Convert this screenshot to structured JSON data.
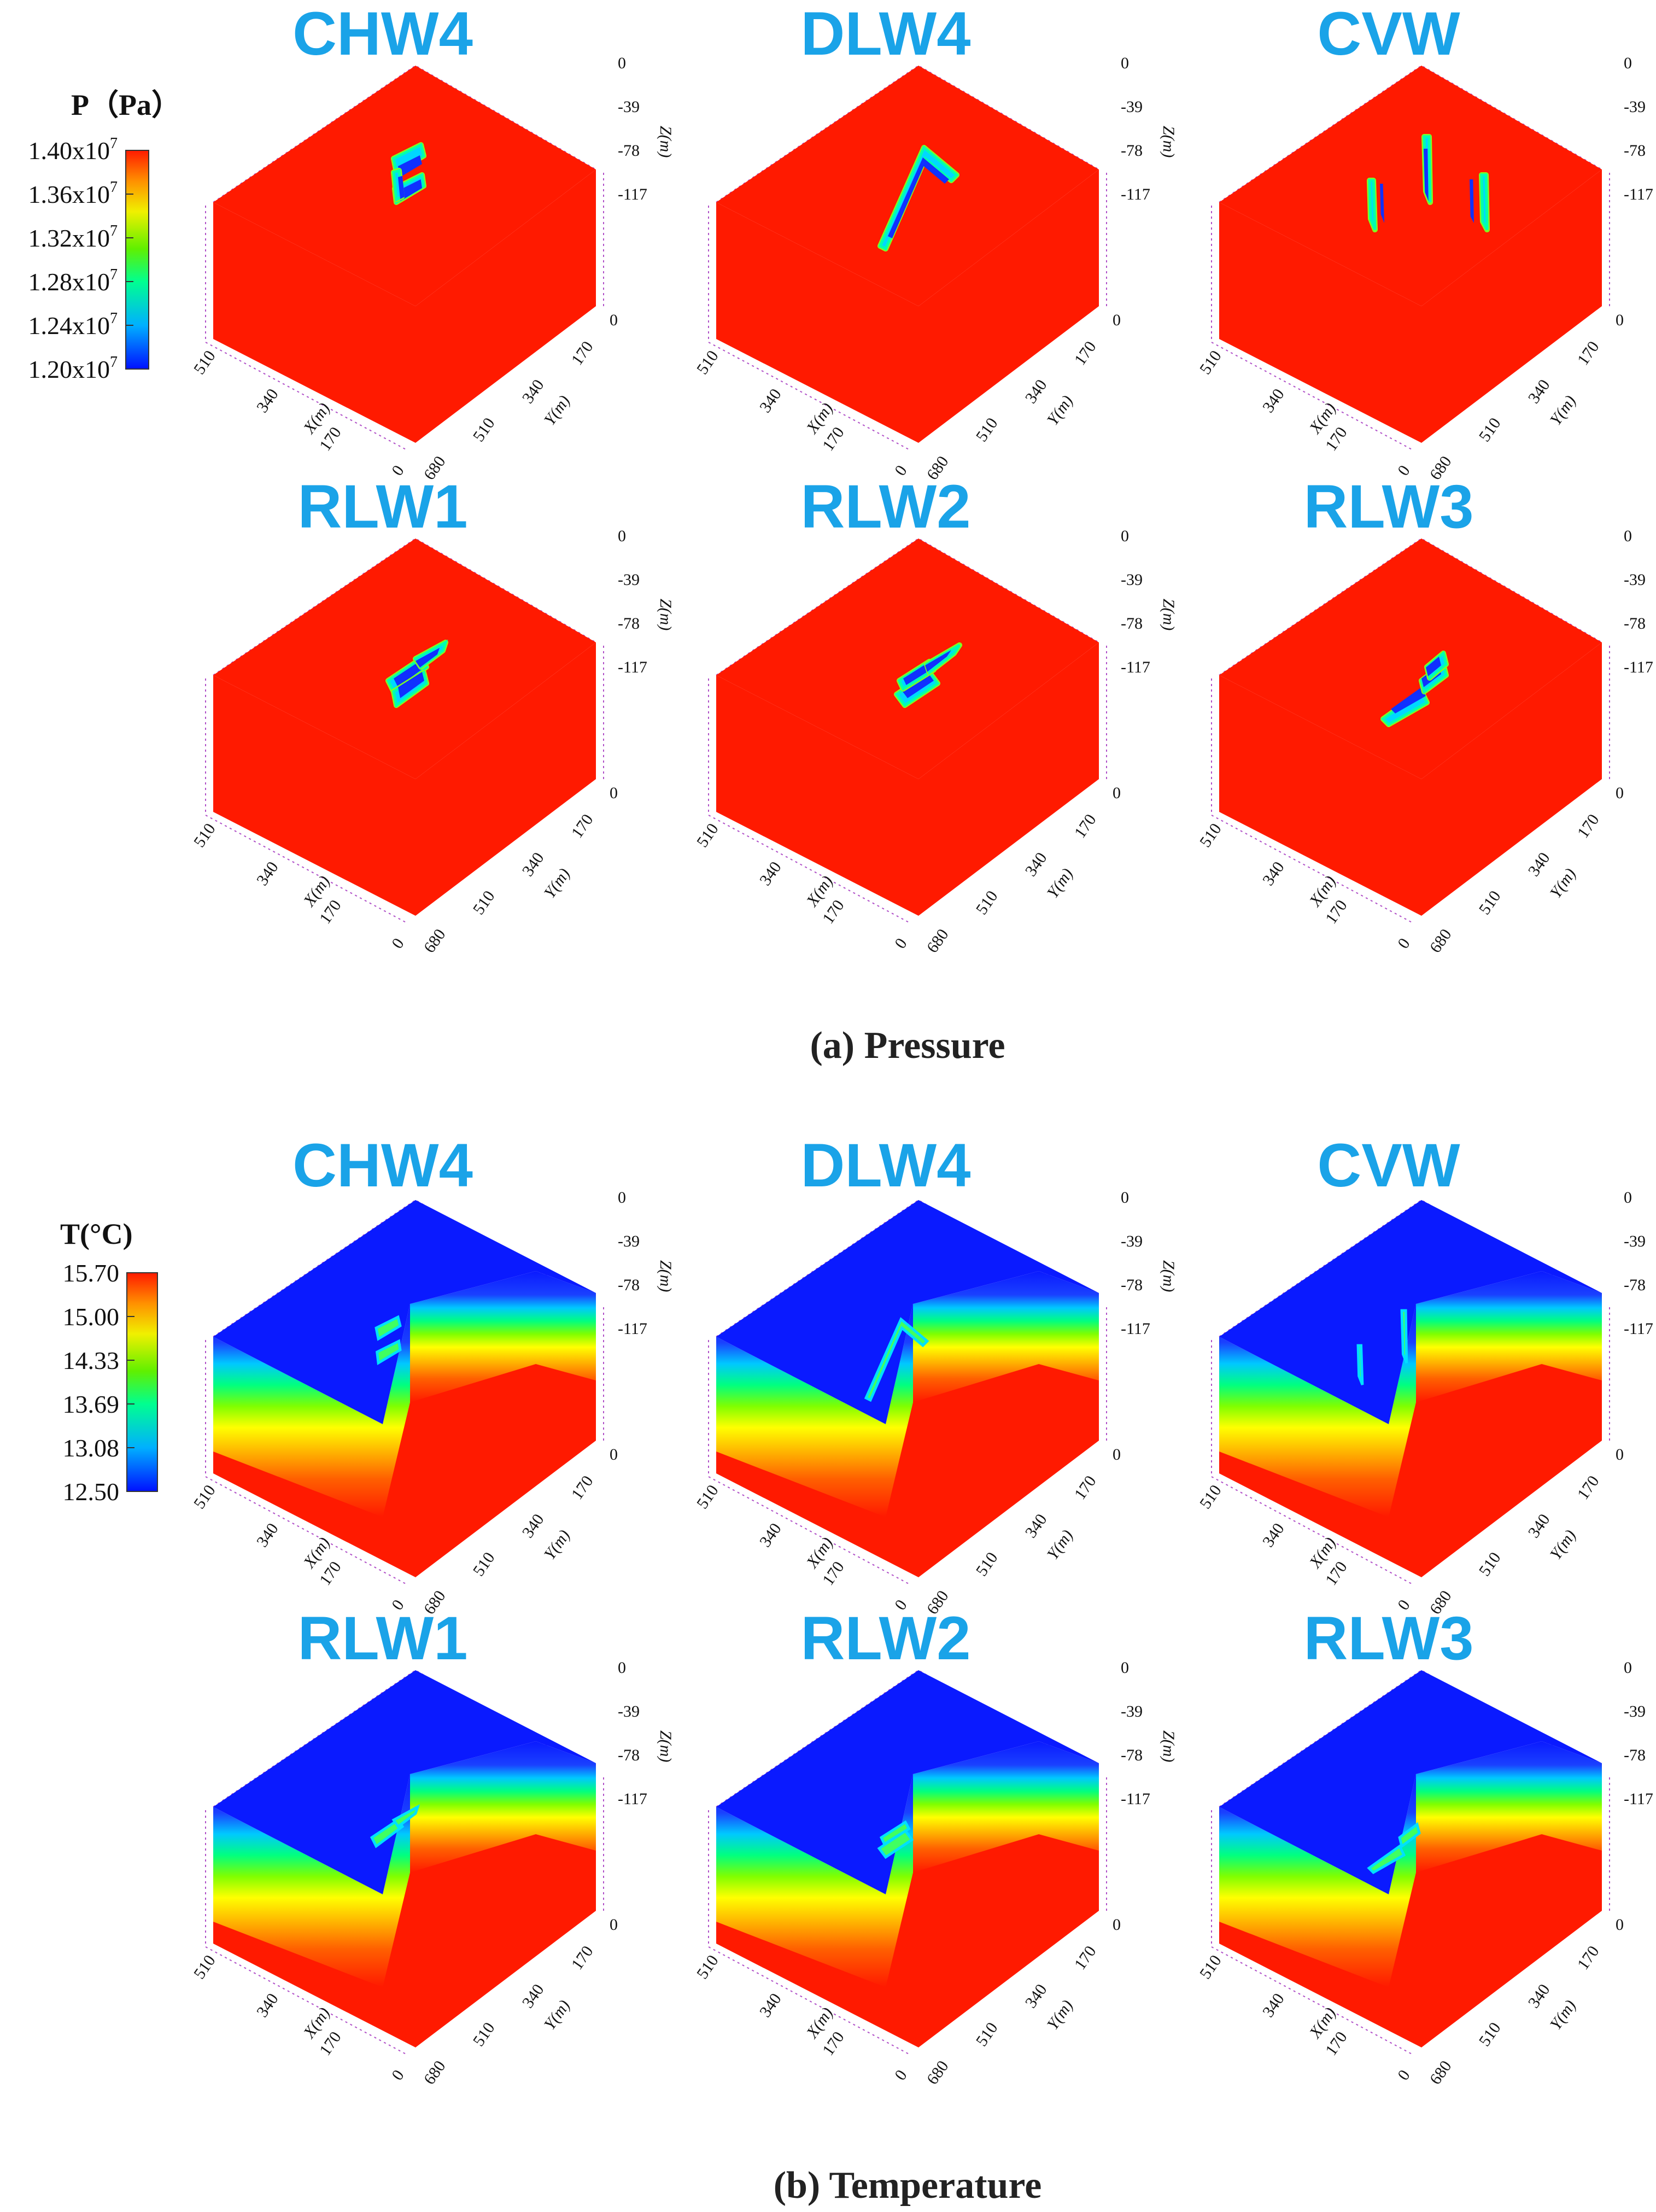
{
  "chart_data": [
    {
      "type": "heatmap",
      "section": "pressure",
      "caption": "(a) Pressure",
      "panels": [
        "CHW4",
        "DLW4",
        "CVW",
        "RLW1",
        "RLW2",
        "RLW3"
      ],
      "colorbar": {
        "title": "P（Pa）",
        "ticks": [
          "1.40x10",
          "1.36x10",
          "1.32x10",
          "1.28x10",
          "1.24x10",
          "1.20x10"
        ],
        "exponent": "7",
        "range": [
          12000000,
          14000000
        ]
      },
      "axes": {
        "x_label": "X(m)",
        "x_ticks": [
          "0",
          "170",
          "340",
          "510"
        ],
        "y_label": "Y(m)",
        "y_ticks": [
          "680",
          "510",
          "340",
          "170",
          "0"
        ],
        "z_label": "Z(m)",
        "z_ticks": [
          "0",
          "-39",
          "-78",
          "-117"
        ]
      }
    },
    {
      "type": "heatmap",
      "section": "temperature",
      "caption": "(b) Temperature",
      "panels": [
        "CHW4",
        "DLW4",
        "CVW",
        "RLW1",
        "RLW2",
        "RLW3"
      ],
      "colorbar": {
        "title": "T(°C)",
        "ticks": [
          "15.70",
          "15.00",
          "14.33",
          "13.69",
          "13.08",
          "12.50"
        ],
        "range": [
          12.5,
          15.7
        ]
      },
      "axes": {
        "x_label": "X(m)",
        "x_ticks": [
          "0",
          "170",
          "340",
          "510"
        ],
        "y_label": "Y(m)",
        "y_ticks": [
          "680",
          "510",
          "340",
          "170",
          "0"
        ],
        "z_label": "Z(m)",
        "z_ticks": [
          "0",
          "-39",
          "-78",
          "-117"
        ]
      }
    }
  ],
  "colors": {
    "title": "#1aa3e8",
    "red": "#ff1a00",
    "blue": "#0a1aff",
    "frame": "#b050c8"
  }
}
